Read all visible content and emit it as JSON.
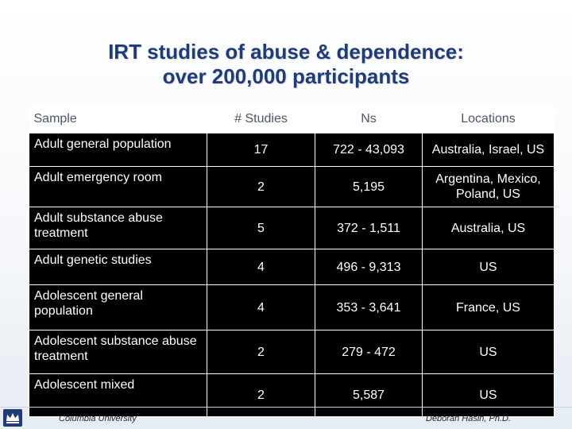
{
  "title": {
    "line1": "IRT studies of abuse & dependence:",
    "line2": "over 200,000 participants"
  },
  "table": {
    "headers": [
      "Sample",
      "# Studies",
      "Ns",
      "Locations"
    ],
    "rows": [
      {
        "sample": "Adult general population",
        "studies": "17",
        "ns": "722 - 43,093",
        "locations": "Australia, Israel, US"
      },
      {
        "sample": "Adult emergency room",
        "studies": "2",
        "ns": "5,195",
        "locations": "Argentina, Mexico, Poland, US"
      },
      {
        "sample": "Adult substance abuse treatment",
        "studies": "5",
        "ns": "372 - 1,511",
        "locations": "Australia, US"
      },
      {
        "sample": "Adult genetic studies",
        "studies": "4",
        "ns": "496 - 9,313",
        "locations": "US"
      },
      {
        "sample": "Adolescent general population",
        "studies": "4",
        "ns": "353 - 3,641",
        "locations": "France, US"
      },
      {
        "sample": "Adolescent substance abuse treatment",
        "studies": "2",
        "ns": "279 - 472",
        "locations": "US"
      },
      {
        "sample": "Adolescent mixed",
        "studies": "2",
        "ns": "5,587",
        "locations": "US"
      }
    ]
  },
  "footer": {
    "left": "Columbia University",
    "right": "Deborah   Hasin, Ph.D."
  },
  "colors": {
    "title": "#1f3b7a",
    "cell_bg": "#000000",
    "cell_text": "#ffffff"
  },
  "icons": {
    "logo": "crown-icon"
  }
}
